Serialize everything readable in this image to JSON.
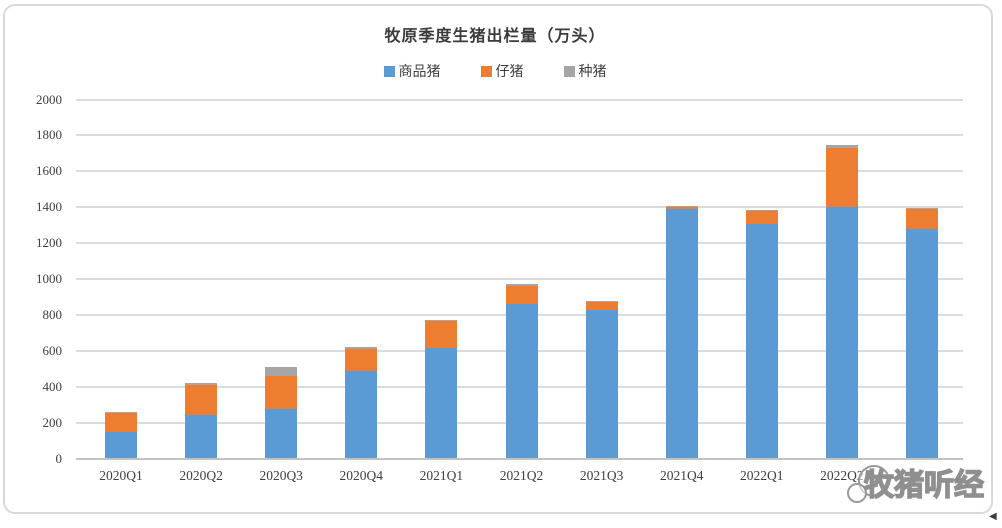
{
  "chart_data": {
    "type": "bar",
    "stacked": true,
    "title": "牧原季度生猪出栏量（万头）",
    "categories": [
      "2020Q1",
      "2020Q2",
      "2020Q3",
      "2020Q4",
      "2021Q1",
      "2021Q2",
      "2021Q3",
      "2021Q4",
      "2022Q1",
      "2022Q2",
      ""
    ],
    "series": [
      {
        "name": "商品猪",
        "color": "#5B9BD5",
        "values": [
          150,
          244,
          274,
          485,
          614,
          860,
          827,
          1390,
          1305,
          1400,
          1278
        ]
      },
      {
        "name": "仔猪",
        "color": "#ED7D31",
        "values": [
          106,
          166,
          188,
          127,
          150,
          101,
          44,
          15,
          74,
          330,
          112
        ]
      },
      {
        "name": "种猪",
        "color": "#A5A5A5",
        "values": [
          2,
          12,
          47,
          11,
          8,
          10,
          4,
          3,
          3,
          15,
          8
        ]
      }
    ],
    "ylim": [
      0,
      2000
    ],
    "yticks": [
      0,
      200,
      400,
      600,
      800,
      1000,
      1200,
      1400,
      1600,
      1800,
      2000
    ],
    "grid": true,
    "legend_position": "top",
    "xlabel": "",
    "ylabel": ""
  },
  "watermark": {
    "text": "牧猪听经"
  },
  "icons": {
    "corner_arrow": "◀"
  }
}
